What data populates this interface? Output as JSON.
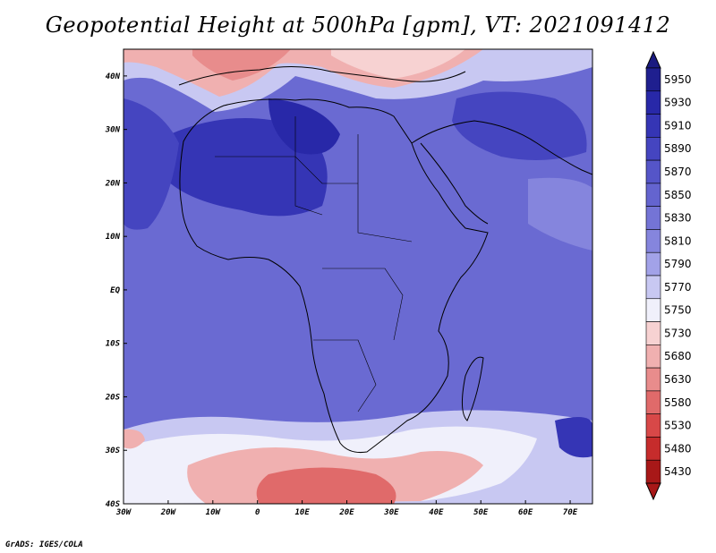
{
  "title": "Geopotential Height at 500hPa [gpm], VT: 2021091412",
  "credit": "GrADS: IGES/COLA",
  "map": {
    "lat_labels": [
      "40N",
      "30N",
      "20N",
      "10N",
      "EQ",
      "10S",
      "20S",
      "30S",
      "40S"
    ],
    "lon_labels": [
      "30W",
      "20W",
      "10W",
      "0",
      "10E",
      "20E",
      "30E",
      "40E",
      "50E",
      "60E",
      "70E"
    ],
    "lat_range": [
      -40,
      45
    ],
    "lon_range": [
      -30,
      75
    ]
  },
  "colorbar": {
    "levels": [
      "5950",
      "5930",
      "5910",
      "5890",
      "5870",
      "5850",
      "5830",
      "5810",
      "5790",
      "5770",
      "5750",
      "5730",
      "5680",
      "5630",
      "5580",
      "5530",
      "5480",
      "5430"
    ],
    "colors": [
      "#1f1f8f",
      "#2828a8",
      "#3535b5",
      "#4545c0",
      "#5555c8",
      "#6464cf",
      "#7474d6",
      "#8585dd",
      "#a2a2e8",
      "#c8c8f2",
      "#f0f0fb",
      "#f7d2d2",
      "#f0b0b0",
      "#e88c8c",
      "#e06a6a",
      "#d84848",
      "#c62c2c",
      "#a81818"
    ],
    "top_cap_color": "#1a1a80",
    "bottom_cap_color": "#a81818"
  },
  "colors": {
    "high": "#3535b5",
    "mid": "#6464cf",
    "light": "#c8c8f2",
    "low": "#e06a6a"
  }
}
